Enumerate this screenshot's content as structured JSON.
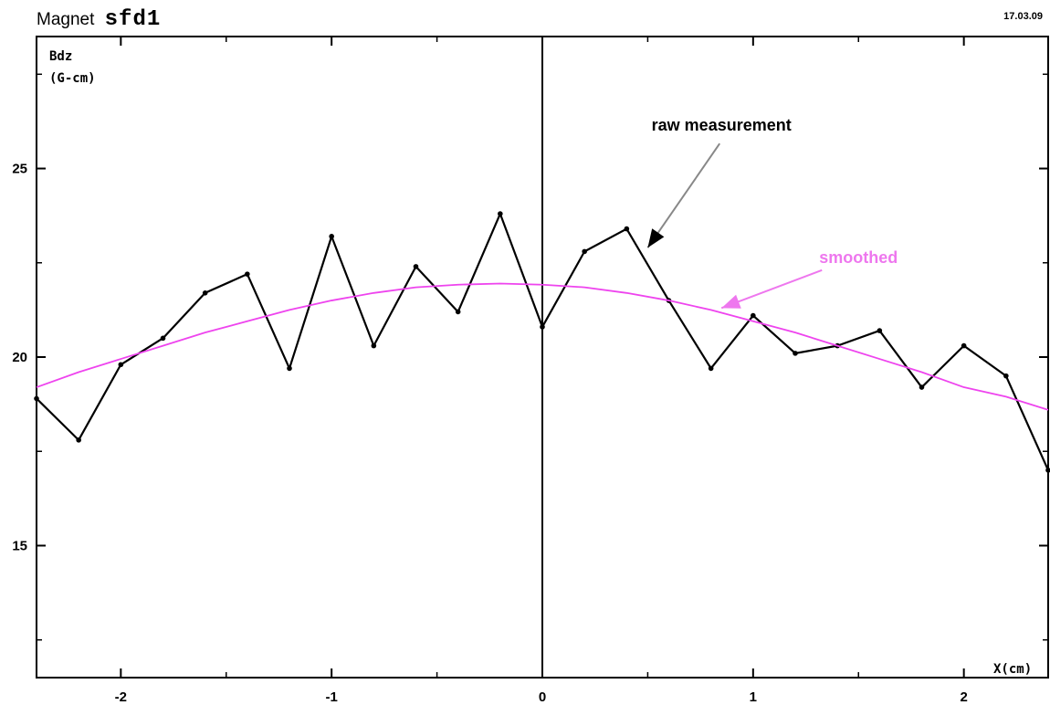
{
  "header": {
    "prefix": "Magnet",
    "magnet_name": "sfd1",
    "date": "17.03.09"
  },
  "chart_data": {
    "type": "line",
    "ylabel_line1": "Bdz",
    "ylabel_line2": "(G-cm)",
    "xlabel": "X(cm)",
    "xlim": [
      -2.4,
      2.4
    ],
    "ylim": [
      11.5,
      28.5
    ],
    "xticks": [
      -2,
      -1,
      0,
      1,
      2
    ],
    "xtick_labels": [
      "-2",
      "-1",
      "0",
      "1",
      "2"
    ],
    "yticks": [
      15,
      20,
      25
    ],
    "ytick_labels": [
      "15",
      "20",
      "25"
    ],
    "series": [
      {
        "color": "#000000",
        "x": [
          -2.4,
          -2.2,
          -2.0,
          -1.8,
          -1.6,
          -1.4,
          -1.2,
          -1.0,
          -0.8,
          -0.6,
          -0.4,
          -0.2,
          0.0,
          0.2,
          0.4,
          0.6,
          0.8,
          1.0,
          1.2,
          1.4,
          1.6,
          1.8,
          2.0,
          2.2,
          2.4
        ],
        "y": [
          18.9,
          17.8,
          19.8,
          20.5,
          21.7,
          22.2,
          19.7,
          23.2,
          20.3,
          22.4,
          21.2,
          23.8,
          20.8,
          22.8,
          23.4,
          21.5,
          19.7,
          21.1,
          20.1,
          20.3,
          20.7,
          19.2,
          20.3,
          19.5,
          17.0
        ]
      },
      {
        "color": "#ee44ee",
        "x": [
          -2.4,
          -2.2,
          -2.0,
          -1.8,
          -1.6,
          -1.4,
          -1.2,
          -1.0,
          -0.8,
          -0.6,
          -0.4,
          -0.2,
          0.0,
          0.2,
          0.4,
          0.6,
          0.8,
          1.0,
          1.2,
          1.4,
          1.6,
          1.8,
          2.0,
          2.2,
          2.4
        ],
        "y": [
          19.2,
          19.6,
          19.95,
          20.3,
          20.65,
          20.95,
          21.25,
          21.5,
          21.7,
          21.85,
          21.92,
          21.95,
          21.92,
          21.85,
          21.7,
          21.5,
          21.25,
          20.95,
          20.65,
          20.3,
          19.95,
          19.6,
          19.2,
          18.95,
          18.6
        ]
      }
    ],
    "annotations": [
      {
        "text": "raw measurement",
        "color": "#000000",
        "tx": 0.85,
        "ty": 26.0,
        "ax": 0.5,
        "ay": 22.9
      },
      {
        "text": "smoothed",
        "color": "#ee77ee",
        "tx": 1.5,
        "ty": 22.5,
        "ax": 0.85,
        "ay": 21.3
      }
    ]
  }
}
